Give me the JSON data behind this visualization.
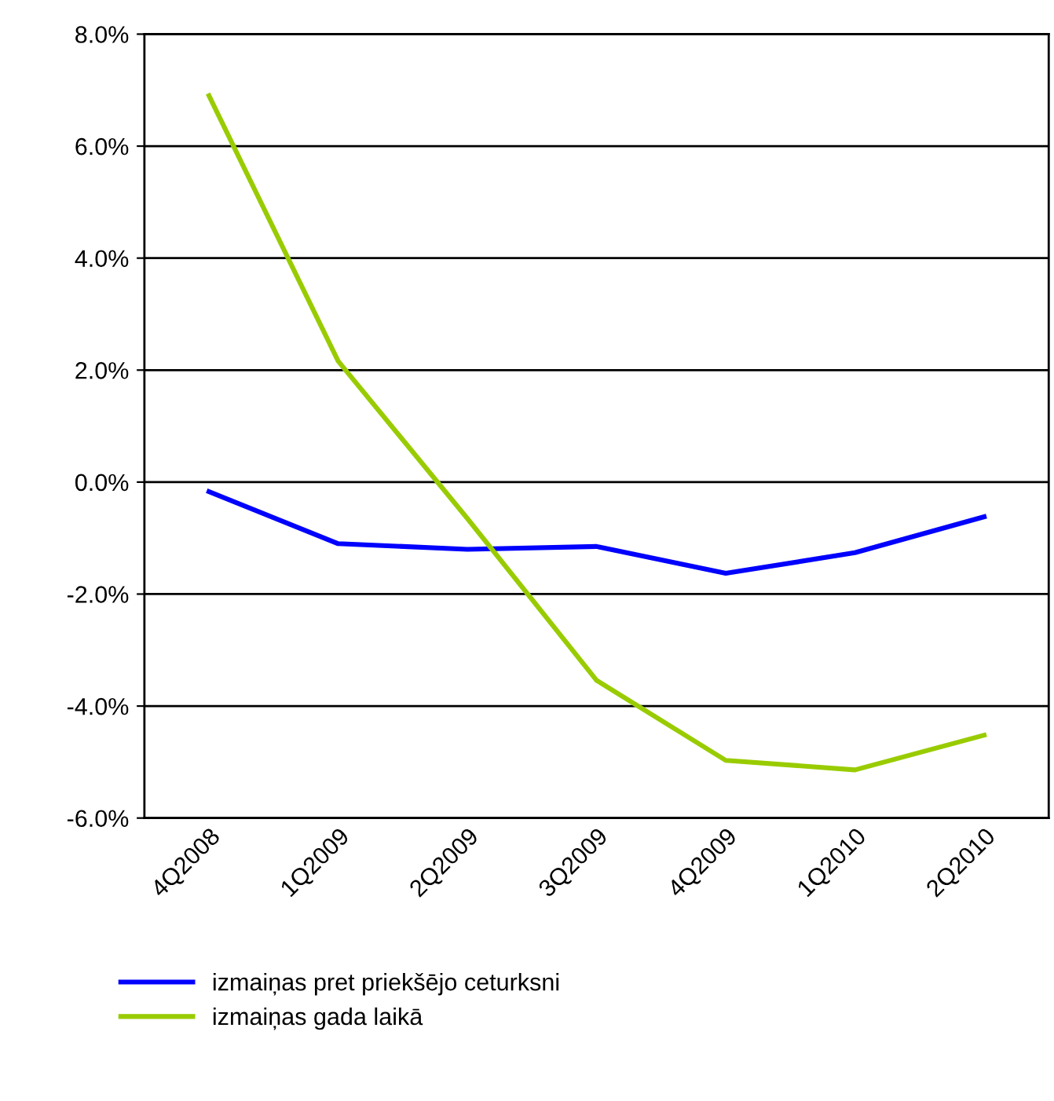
{
  "chart_data": {
    "type": "line",
    "categories": [
      "4Q2008",
      "1Q2009",
      "2Q2009",
      "3Q2009",
      "4Q2009",
      "1Q2010",
      "2Q2010"
    ],
    "series": [
      {
        "name": "izmaiņas pret priekšējo ceturksni",
        "color": "#0000ff",
        "values": [
          -0.17,
          -1.1,
          -1.2,
          -1.15,
          -1.63,
          -1.26,
          -0.62
        ]
      },
      {
        "name": "izmaiņas gada laikā",
        "color": "#99cc00",
        "values": [
          6.9,
          2.16,
          -0.65,
          -3.54,
          -4.97,
          -5.14,
          -4.52
        ]
      }
    ],
    "ylim": [
      -6,
      8
    ],
    "yticks": [
      {
        "value": -6,
        "label": "-6.0%"
      },
      {
        "value": -4,
        "label": "-4.0%"
      },
      {
        "value": -2,
        "label": "-2.0%"
      },
      {
        "value": 0,
        "label": "0.0%"
      },
      {
        "value": 2,
        "label": "2.0%"
      },
      {
        "value": 4,
        "label": "4.0%"
      },
      {
        "value": 6,
        "label": "6.0%"
      },
      {
        "value": 8,
        "label": "8.0%"
      }
    ],
    "grid": "y",
    "legend": "bottom",
    "marker": "none",
    "line_style": "solid"
  }
}
